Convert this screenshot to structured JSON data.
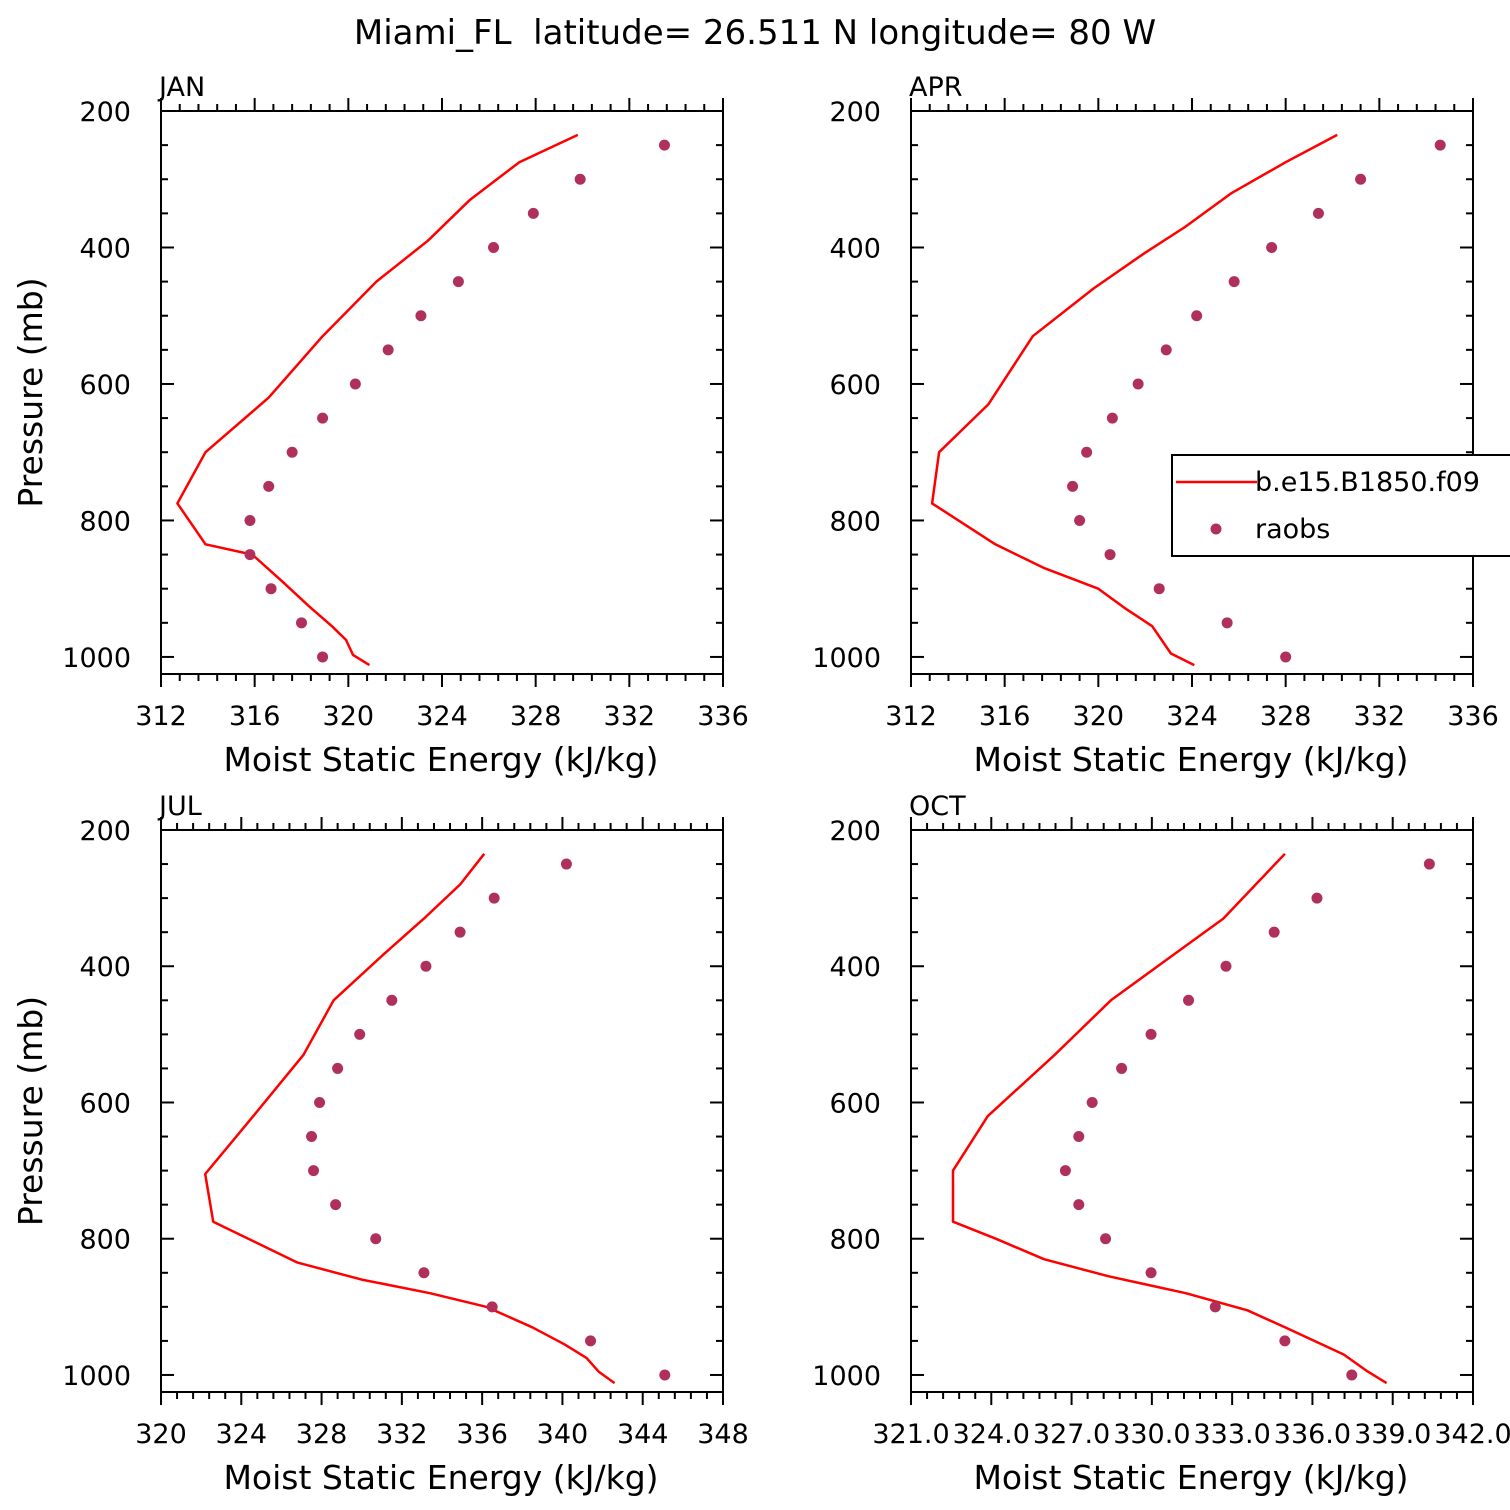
{
  "figure_title": "Miami_FL  latitude= 26.511 N longitude= 80 W",
  "legend": {
    "model_label": "b.e15.B1850.f09",
    "obs_label": "raobs"
  },
  "colors": {
    "model_line": "#ff0000",
    "obs_marker": "#b0305c",
    "axis": "#000000"
  },
  "chart_data": [
    {
      "type": "line",
      "title": "JAN",
      "xlabel": "Moist Static Energy (kJ/kg)",
      "ylabel": "Pressure (mb)",
      "xlim": [
        312,
        336
      ],
      "ylim": [
        1025,
        200
      ],
      "xticks": [
        312,
        316,
        320,
        324,
        328,
        332,
        336
      ],
      "xtick_labels": [
        "312",
        "316",
        "320",
        "324",
        "328",
        "332",
        "336"
      ],
      "yticks": [
        200,
        400,
        600,
        800,
        1000
      ],
      "yticks_labeled": true,
      "series": [
        {
          "name": "b.e15.B1850.f09",
          "style": "line",
          "x": [
            320.9,
            320.2,
            319.9,
            319.3,
            318.3,
            317.2,
            315.9,
            313.9,
            312.7,
            313.9,
            316.6,
            318.9,
            321.2,
            323.4,
            325.2,
            327.3,
            329.8
          ],
          "y": [
            1012,
            997,
            975,
            955,
            925,
            890,
            850,
            835,
            775,
            700,
            620,
            530,
            450,
            390,
            330,
            275,
            235
          ]
        },
        {
          "name": "raobs",
          "style": "marker",
          "x": [
            318.9,
            318.0,
            316.7,
            315.8,
            315.8,
            316.6,
            317.6,
            318.9,
            320.3,
            321.7,
            323.1,
            324.7,
            326.2,
            327.9,
            329.9,
            333.5
          ],
          "y": [
            1000,
            950,
            900,
            850,
            800,
            750,
            700,
            650,
            600,
            550,
            500,
            450,
            400,
            350,
            300,
            250
          ]
        }
      ]
    },
    {
      "type": "line",
      "title": "APR",
      "xlabel": "Moist Static Energy (kJ/kg)",
      "ylabel": "",
      "xlim": [
        312,
        336
      ],
      "ylim": [
        1025,
        200
      ],
      "xticks": [
        312,
        316,
        320,
        324,
        328,
        332,
        336
      ],
      "xtick_labels": [
        "312",
        "316",
        "320",
        "324",
        "328",
        "332",
        "336"
      ],
      "yticks": [
        200,
        400,
        600,
        800,
        1000
      ],
      "yticks_labeled": true,
      "legend": "center-right",
      "series": [
        {
          "name": "b.e15.B1850.f09",
          "style": "line",
          "x": [
            324.1,
            323.1,
            322.3,
            321.2,
            320.0,
            317.7,
            315.6,
            312.9,
            313.2,
            315.3,
            317.2,
            319.8,
            321.9,
            323.7,
            325.7,
            328.0,
            330.2
          ],
          "y": [
            1012,
            995,
            955,
            930,
            900,
            870,
            835,
            775,
            700,
            630,
            530,
            460,
            410,
            370,
            320,
            275,
            235
          ]
        },
        {
          "name": "raobs",
          "style": "marker",
          "x": [
            328.0,
            325.5,
            322.6,
            320.5,
            319.2,
            318.9,
            319.5,
            320.6,
            321.7,
            322.9,
            324.2,
            325.8,
            327.4,
            329.4,
            331.2,
            334.6
          ],
          "y": [
            1000,
            950,
            900,
            850,
            800,
            750,
            700,
            650,
            600,
            550,
            500,
            450,
            400,
            350,
            300,
            250
          ]
        }
      ]
    },
    {
      "type": "line",
      "title": "JUL",
      "xlabel": "Moist Static Energy (kJ/kg)",
      "ylabel": "Pressure (mb)",
      "xlim": [
        320,
        348
      ],
      "ylim": [
        1025,
        200
      ],
      "xticks": [
        320,
        324,
        328,
        332,
        336,
        340,
        344,
        348
      ],
      "xtick_labels": [
        "320",
        "324",
        "328",
        "332",
        "336",
        "340",
        "344",
        "348"
      ],
      "yticks": [
        200,
        400,
        600,
        800,
        1000
      ],
      "yticks_labeled": true,
      "series": [
        {
          "name": "b.e15.B1850.f09",
          "style": "line",
          "x": [
            342.6,
            341.8,
            341.2,
            340.1,
            338.5,
            336.2,
            333.4,
            330.0,
            326.8,
            322.6,
            322.2,
            324.6,
            327.1,
            328.6,
            331.0,
            333.1,
            334.9,
            336.1
          ],
          "y": [
            1012,
            995,
            975,
            955,
            930,
            900,
            880,
            860,
            835,
            775,
            705,
            620,
            530,
            450,
            385,
            330,
            280,
            235
          ]
        },
        {
          "name": "raobs",
          "style": "marker",
          "x": [
            345.1,
            341.4,
            336.5,
            333.1,
            330.7,
            328.7,
            327.6,
            327.5,
            327.9,
            328.8,
            329.9,
            331.5,
            333.2,
            334.9,
            336.6,
            340.2
          ],
          "y": [
            1000,
            950,
            900,
            850,
            800,
            750,
            700,
            650,
            600,
            550,
            500,
            450,
            400,
            350,
            300,
            250
          ]
        }
      ]
    },
    {
      "type": "line",
      "title": "OCT",
      "xlabel": "Moist Static Energy (kJ/kg)",
      "ylabel": "",
      "xlim": [
        321.03,
        342.03
      ],
      "ylim": [
        1025,
        200
      ],
      "xticks": [
        321.03,
        324.03,
        327.03,
        330.03,
        333.03,
        336.03,
        339.03,
        342.03
      ],
      "xtick_labels": [
        "321.0",
        "324.0",
        "327.0",
        "330.0",
        "333.0",
        "336.0",
        "339.0",
        "342.0"
      ],
      "yticks": [
        200,
        400,
        600,
        800,
        1000
      ],
      "yticks_labeled": true,
      "series": [
        {
          "name": "b.e15.B1850.f09",
          "style": "line",
          "x": [
            338.8,
            338.1,
            337.2,
            336.1,
            335.0,
            333.6,
            331.3,
            328.4,
            326.0,
            324.2,
            322.6,
            322.6,
            323.9,
            326.4,
            328.5,
            330.6,
            332.7,
            335.0
          ],
          "y": [
            1012,
            995,
            970,
            950,
            930,
            905,
            880,
            855,
            830,
            800,
            775,
            700,
            620,
            530,
            450,
            390,
            330,
            235
          ]
        },
        {
          "name": "raobs",
          "style": "marker",
          "x": [
            337.5,
            335.0,
            332.4,
            330.0,
            328.3,
            327.3,
            326.8,
            327.3,
            327.8,
            328.9,
            330.0,
            331.4,
            332.8,
            334.6,
            336.2,
            340.4
          ],
          "y": [
            1000,
            950,
            900,
            850,
            800,
            750,
            700,
            650,
            600,
            550,
            500,
            450,
            400,
            350,
            300,
            250
          ]
        }
      ]
    }
  ]
}
